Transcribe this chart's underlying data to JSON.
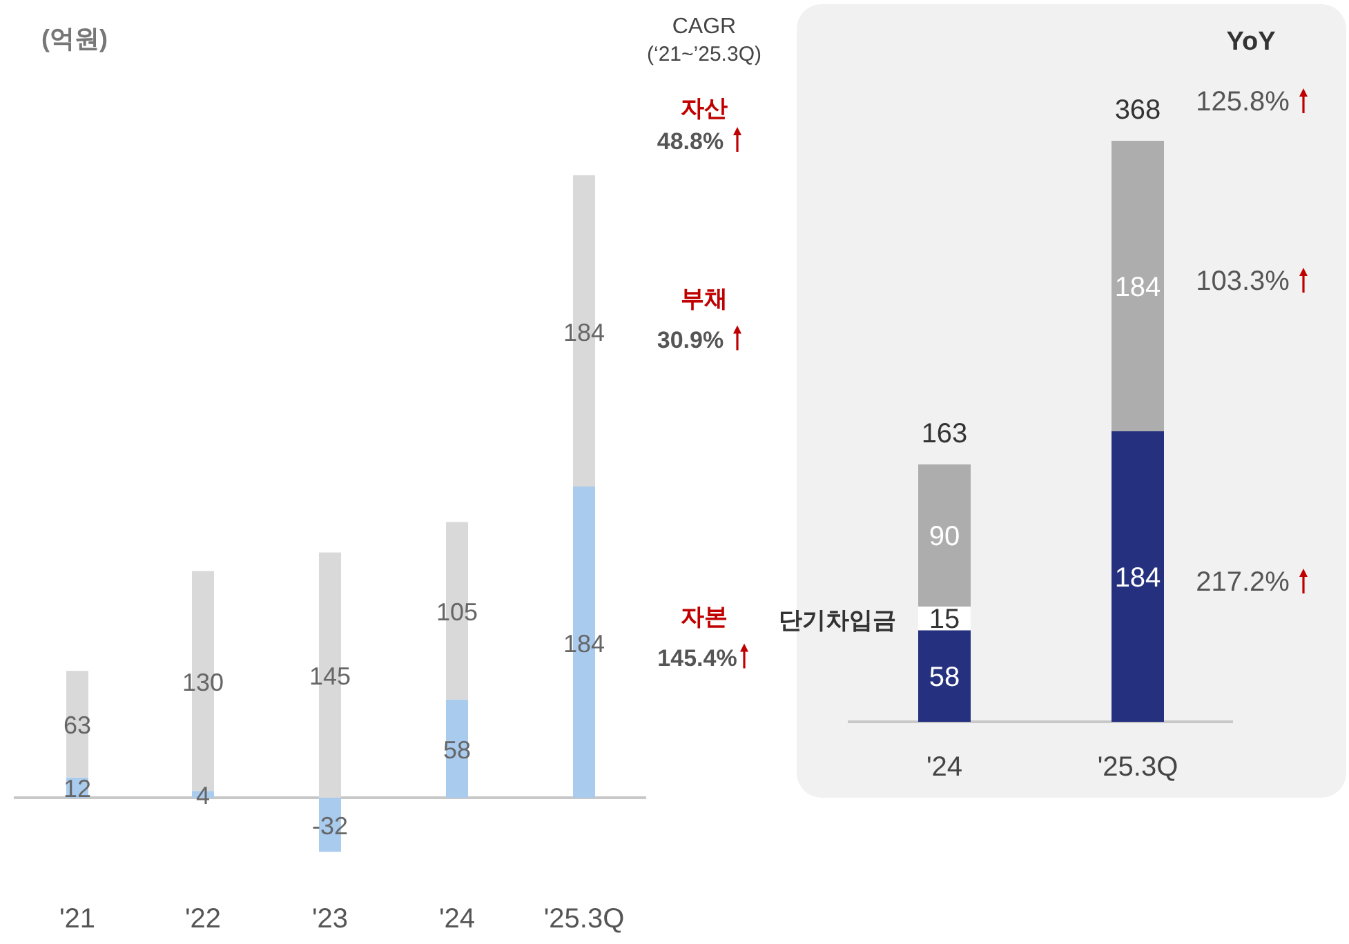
{
  "chart_data": [
    {
      "type": "bar",
      "stacked": true,
      "data_labels": true,
      "ylabel": "(억원)",
      "categories": [
        "'21",
        "'22",
        "'23",
        "'24",
        "'25.3Q"
      ],
      "series": [
        {
          "name": "자본",
          "color": "#a8cbee",
          "values": [
            12,
            4,
            -32,
            58,
            184
          ]
        },
        {
          "name": "부채",
          "color": "#d9d9d9",
          "values": [
            63,
            130,
            145,
            105,
            184
          ]
        }
      ],
      "annotations": [
        "CAGR",
        "(‘21~’25.3Q)",
        "자산",
        "48.8%",
        "30.9%",
        "145.4%"
      ]
    },
    {
      "type": "bar",
      "stacked": true,
      "data_labels": true,
      "categories": [
        "'24",
        "'25.3Q"
      ],
      "series": [
        {
          "color": "#25317f",
          "values": [
            58,
            184
          ]
        },
        {
          "name": "단기차입금",
          "color": "#ffffff",
          "values": [
            15,
            null
          ]
        },
        {
          "color": "#adadad",
          "values": [
            90,
            184
          ]
        }
      ],
      "totals": [
        "163",
        "368"
      ],
      "annotations": [
        "YoY",
        "125.8%",
        "103.3%",
        "217.2%"
      ]
    }
  ]
}
